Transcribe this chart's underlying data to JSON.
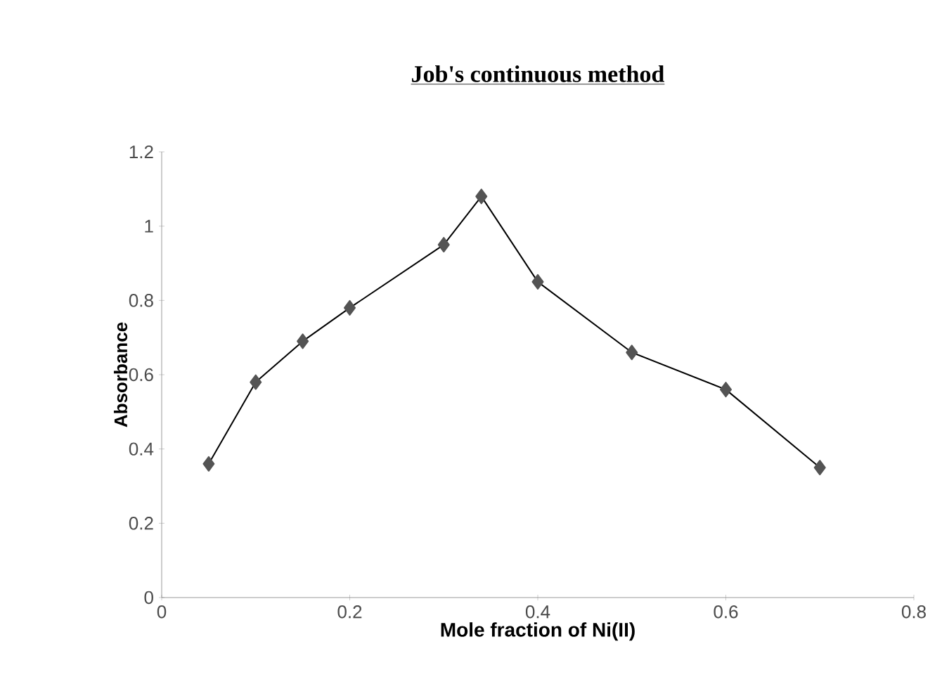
{
  "chart_data": {
    "type": "line",
    "title": "Job's continuous method",
    "xlabel": "Mole fraction of Ni(II)",
    "ylabel": "Absorbance",
    "x": [
      0.05,
      0.1,
      0.15,
      0.2,
      0.3,
      0.34,
      0.4,
      0.5,
      0.6,
      0.7
    ],
    "values": [
      0.36,
      0.58,
      0.69,
      0.78,
      0.95,
      1.08,
      0.85,
      0.66,
      0.56,
      0.35
    ],
    "color": "#000000",
    "marker": "diamond",
    "line_style": "solid",
    "xlim": [
      0,
      0.8
    ],
    "ylim": [
      0,
      1.2
    ],
    "xticks": [
      0,
      0.2,
      0.4,
      0.6,
      0.8
    ],
    "yticks": [
      0,
      0.2,
      0.4,
      0.6,
      0.8,
      1,
      1.2
    ],
    "grid": false
  }
}
